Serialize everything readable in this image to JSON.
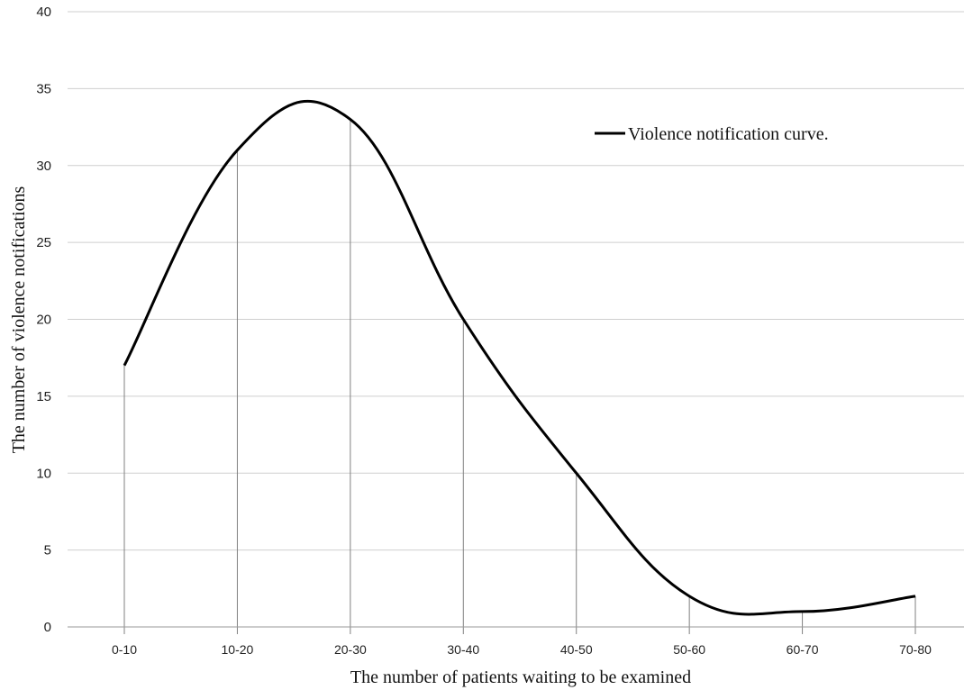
{
  "chart_data": {
    "type": "line",
    "title": "",
    "xlabel": "The number of patients waiting to be examined",
    "ylabel": "The number of violence notifications",
    "categories": [
      "0-10",
      "10-20",
      "20-30",
      "30-40",
      "40-50",
      "50-60",
      "60-70",
      "70-80"
    ],
    "series": [
      {
        "name": "Violence notification curve.",
        "values": [
          17,
          31,
          33,
          20,
          10,
          2,
          1,
          2
        ]
      }
    ],
    "ylim": [
      0,
      40
    ],
    "yticks": [
      0,
      5,
      10,
      15,
      20,
      25,
      30,
      35,
      40
    ],
    "grid": "horizontal",
    "drop_lines": true,
    "smooth": true,
    "legend_position": "top-right",
    "line_color": "#000000"
  }
}
